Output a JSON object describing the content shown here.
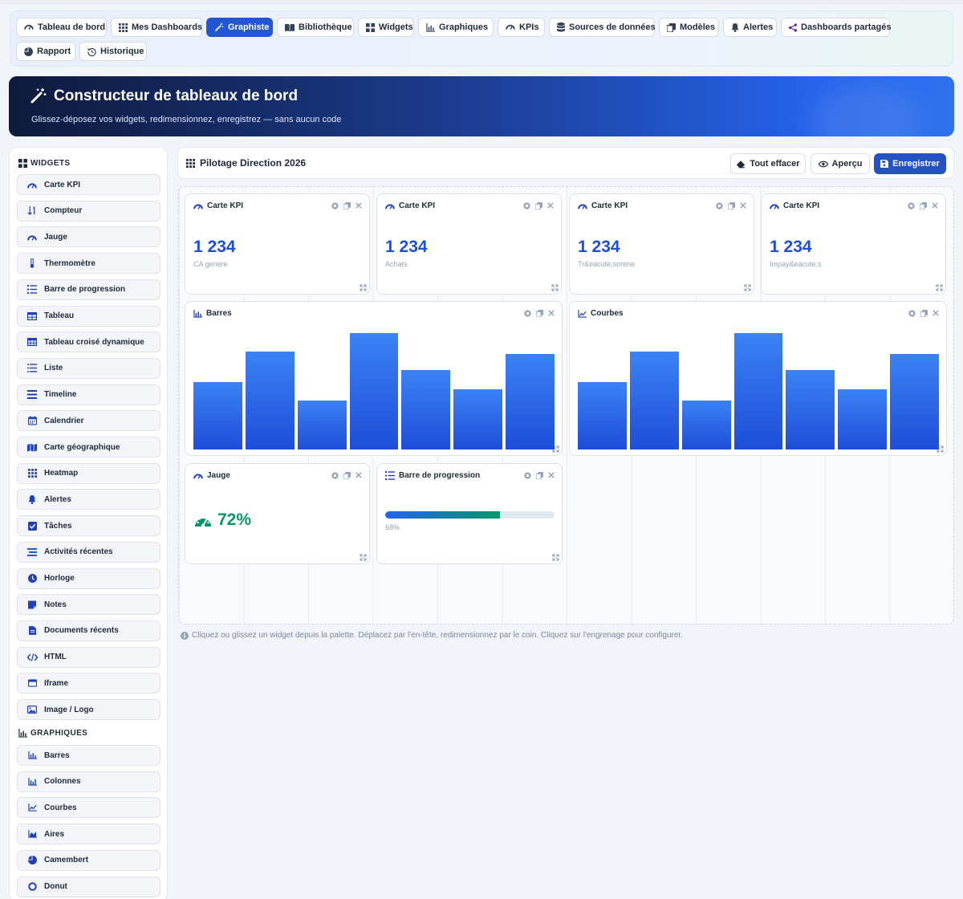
{
  "nav": {
    "items": [
      {
        "label": "Tableau de bord",
        "icon": "gauge-icon"
      },
      {
        "label": "Mes Dashboards",
        "icon": "grid-icon"
      },
      {
        "label": "Graphiste",
        "icon": "magic-wand-icon",
        "active": true
      },
      {
        "label": "Bibliothèque",
        "icon": "book-icon"
      },
      {
        "label": "Widgets",
        "icon": "widgets-icon"
      },
      {
        "label": "Graphiques",
        "icon": "chart-bar-icon"
      },
      {
        "label": "KPIs",
        "icon": "gauge-icon"
      },
      {
        "label": "Sources de données",
        "icon": "database-icon"
      },
      {
        "label": "Modèles",
        "icon": "copy-icon"
      },
      {
        "label": "Alertes",
        "icon": "bell-icon"
      },
      {
        "label": "Dashboards partagés",
        "icon": "share-icon"
      },
      {
        "label": "Rapport",
        "icon": "pie-icon"
      },
      {
        "label": "Historique",
        "icon": "history-icon"
      }
    ]
  },
  "hero": {
    "title": "Constructeur de tableaux de bord",
    "subtitle": "Glissez-déposez vos widgets, redimensionnez, enregistrez — sans aucun code"
  },
  "palette": {
    "widgets_title": "WIDGETS",
    "widgets": [
      {
        "label": "Carte KPI",
        "icon": "gauge-icon"
      },
      {
        "label": "Compteur",
        "icon": "sort-numeric-icon"
      },
      {
        "label": "Jauge",
        "icon": "gauge-icon"
      },
      {
        "label": "Thermomètre",
        "icon": "thermometer-icon"
      },
      {
        "label": "Barre de progression",
        "icon": "list-progress-icon"
      },
      {
        "label": "Tableau",
        "icon": "table-icon"
      },
      {
        "label": "Tableau croisé dynamique",
        "icon": "pivot-table-icon"
      },
      {
        "label": "Liste",
        "icon": "list-icon"
      },
      {
        "label": "Timeline",
        "icon": "timeline-icon"
      },
      {
        "label": "Calendrier",
        "icon": "calendar-icon"
      },
      {
        "label": "Carte géographique",
        "icon": "map-icon"
      },
      {
        "label": "Heatmap",
        "icon": "heatmap-icon"
      },
      {
        "label": "Alertes",
        "icon": "bell-icon"
      },
      {
        "label": "Tâches",
        "icon": "checkbox-icon"
      },
      {
        "label": "Activités récentes",
        "icon": "stream-icon"
      },
      {
        "label": "Horloge",
        "icon": "clock-icon"
      },
      {
        "label": "Notes",
        "icon": "note-icon"
      },
      {
        "label": "Documents récents",
        "icon": "file-icon"
      },
      {
        "label": "HTML",
        "icon": "code-icon"
      },
      {
        "label": "Iframe",
        "icon": "window-icon"
      },
      {
        "label": "Image / Logo",
        "icon": "image-icon"
      }
    ],
    "charts_title": "GRAPHIQUES",
    "charts": [
      {
        "label": "Barres",
        "icon": "chart-bar-icon"
      },
      {
        "label": "Colonnes",
        "icon": "chart-column-icon"
      },
      {
        "label": "Courbes",
        "icon": "chart-line-icon"
      },
      {
        "label": "Aires",
        "icon": "chart-area-icon"
      },
      {
        "label": "Camembert",
        "icon": "pie-icon"
      },
      {
        "label": "Donut",
        "icon": "donut-icon"
      }
    ]
  },
  "builder": {
    "dashboard_name": "Pilotage Direction 2026",
    "clear_label": "Tout effacer",
    "preview_label": "Aperçu",
    "save_label": "Enregistrer"
  },
  "widgets": {
    "kpis": [
      {
        "title": "Carte KPI",
        "value": "1 234",
        "label": "CA genere"
      },
      {
        "title": "Carte KPI",
        "value": "1 234",
        "label": "Achats"
      },
      {
        "title": "Carte KPI",
        "value": "1 234",
        "label": "Tr&eacute;sorerie"
      },
      {
        "title": "Carte KPI",
        "value": "1 234",
        "label": "Impay&eacute;s"
      }
    ],
    "bar_chart_title": "Barres",
    "line_chart_title": "Courbes",
    "gauge": {
      "title": "Jauge",
      "value": "72%"
    },
    "progress": {
      "title": "Barre de progression",
      "value": 0.68,
      "label": "68%"
    }
  },
  "chart_data": [
    {
      "type": "bar",
      "title": "Barres",
      "values": [
        58,
        84,
        42,
        100,
        68,
        52,
        82
      ],
      "ylim": [
        0,
        100
      ]
    },
    {
      "type": "bar",
      "title": "Courbes",
      "values": [
        58,
        84,
        42,
        100,
        68,
        52,
        82
      ],
      "ylim": [
        0,
        100
      ]
    }
  ],
  "hint": "Cliquez ou glissez un widget depuis la palette. Déplacez par l'en-tête, redimensionnez par le coin. Cliquez sur l'engrenage pour configurer.",
  "colors": {
    "accent": "#2357d0",
    "kpi_value": "#1d4ed8",
    "gauge": "#059669"
  }
}
